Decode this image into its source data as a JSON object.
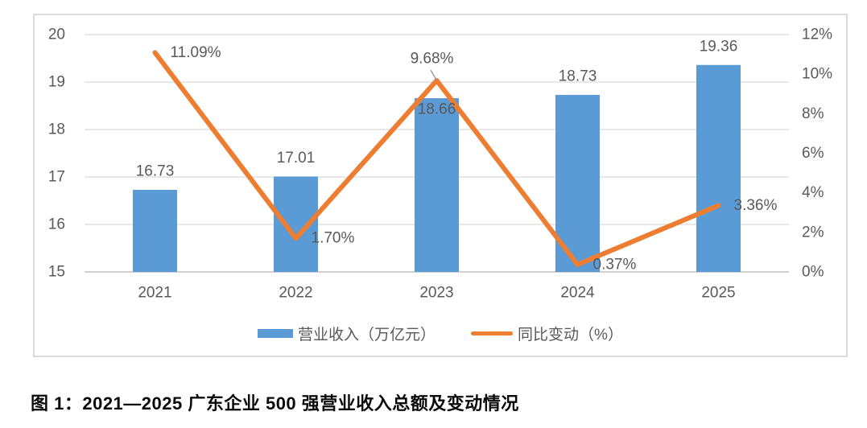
{
  "page": {
    "caption": "图 1：2021—2025 广东企业 500 强营业收入总额及变动情况"
  },
  "legend": {
    "bar_label": "营业收入（万亿元）",
    "line_label": "同比变动（%）"
  },
  "colors": {
    "bar": "#5B9BD5",
    "line": "#ED7D31",
    "grid": "#D9D9D9",
    "baseline": "#D0D0D0",
    "axis_text": "#595959",
    "leader_line": "#9C9C9C",
    "frame_border": "#D9D9D9"
  },
  "chart_data": {
    "type": "bar",
    "combo": "bar+line",
    "title": "",
    "xlabel": "",
    "ylabel_left": "营业收入（万亿元）",
    "ylabel_right": "同比变动（%）",
    "categories": [
      "2021",
      "2022",
      "2023",
      "2024",
      "2025"
    ],
    "series": [
      {
        "name": "营业收入（万亿元）",
        "type": "bar",
        "axis": "left",
        "color": "#5B9BD5",
        "values": [
          16.73,
          17.01,
          18.66,
          18.73,
          19.36
        ],
        "data_labels": [
          "16.73",
          "17.01",
          "18.66",
          "18.73",
          "19.36"
        ]
      },
      {
        "name": "同比变动（%）",
        "type": "line",
        "axis": "right",
        "color": "#ED7D31",
        "values": [
          11.09,
          1.7,
          9.68,
          0.37,
          3.36
        ],
        "data_labels": [
          "11.09%",
          "1.70%",
          "9.68%",
          "0.37%",
          "3.36%"
        ]
      }
    ],
    "left_axis": {
      "min": 15,
      "max": 20,
      "ticks": [
        20,
        19,
        18,
        17,
        16,
        15
      ]
    },
    "right_axis": {
      "min": 0,
      "max": 12,
      "ticks": [
        "12%",
        "10%",
        "8%",
        "6%",
        "4%",
        "2%",
        "0%"
      ]
    },
    "grid": true,
    "legend_position": "bottom"
  }
}
